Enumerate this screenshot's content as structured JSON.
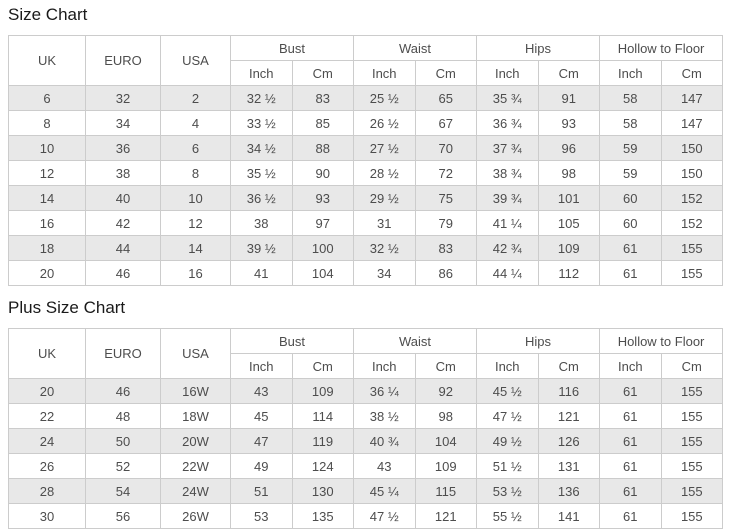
{
  "titles": {
    "main": "Size Chart",
    "plus": "Plus Size Chart"
  },
  "headers": {
    "simple": [
      "UK",
      "EURO",
      "USA"
    ],
    "groups": [
      "Bust",
      "Waist",
      "Hips",
      "Hollow to Floor"
    ],
    "units": [
      "Inch",
      "Cm"
    ]
  },
  "size_chart": {
    "rows": [
      [
        "6",
        "32",
        "2",
        "32 ½",
        "83",
        "25 ½",
        "65",
        "35 ¾",
        "91",
        "58",
        "147"
      ],
      [
        "8",
        "34",
        "4",
        "33 ½",
        "85",
        "26 ½",
        "67",
        "36 ¾",
        "93",
        "58",
        "147"
      ],
      [
        "10",
        "36",
        "6",
        "34 ½",
        "88",
        "27 ½",
        "70",
        "37 ¾",
        "96",
        "59",
        "150"
      ],
      [
        "12",
        "38",
        "8",
        "35 ½",
        "90",
        "28 ½",
        "72",
        "38 ¾",
        "98",
        "59",
        "150"
      ],
      [
        "14",
        "40",
        "10",
        "36 ½",
        "93",
        "29 ½",
        "75",
        "39 ¾",
        "101",
        "60",
        "152"
      ],
      [
        "16",
        "42",
        "12",
        "38",
        "97",
        "31",
        "79",
        "41 ¼",
        "105",
        "60",
        "152"
      ],
      [
        "18",
        "44",
        "14",
        "39 ½",
        "100",
        "32 ½",
        "83",
        "42 ¾",
        "109",
        "61",
        "155"
      ],
      [
        "20",
        "46",
        "16",
        "41",
        "104",
        "34",
        "86",
        "44 ¼",
        "112",
        "61",
        "155"
      ]
    ]
  },
  "plus_size_chart": {
    "rows": [
      [
        "20",
        "46",
        "16W",
        "43",
        "109",
        "36 ¼",
        "92",
        "45 ½",
        "116",
        "61",
        "155"
      ],
      [
        "22",
        "48",
        "18W",
        "45",
        "114",
        "38 ½",
        "98",
        "47 ½",
        "121",
        "61",
        "155"
      ],
      [
        "24",
        "50",
        "20W",
        "47",
        "119",
        "40 ¾",
        "104",
        "49 ½",
        "126",
        "61",
        "155"
      ],
      [
        "26",
        "52",
        "22W",
        "49",
        "124",
        "43",
        "109",
        "51 ½",
        "131",
        "61",
        "155"
      ],
      [
        "28",
        "54",
        "24W",
        "51",
        "130",
        "45 ¼",
        "115",
        "53 ½",
        "136",
        "61",
        "155"
      ],
      [
        "30",
        "56",
        "26W",
        "53",
        "135",
        "47 ½",
        "121",
        "55 ½",
        "141",
        "61",
        "155"
      ]
    ]
  },
  "colors": {
    "row_stripe": "#e8e8e8",
    "border": "#cccccc",
    "text": "#4d4d4d",
    "title": "#1a1a1a"
  }
}
